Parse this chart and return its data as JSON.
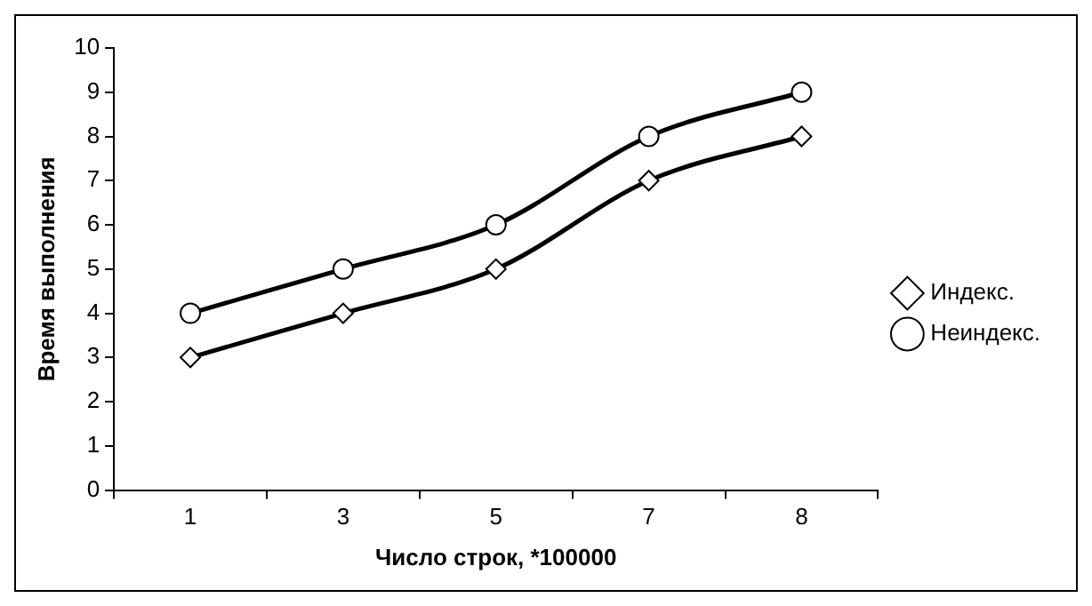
{
  "chart_data": {
    "type": "line",
    "xlabel": "Число строк, *100000",
    "ylabel": "Время выполнения",
    "categories": [
      "1",
      "3",
      "5",
      "7",
      "8"
    ],
    "series": [
      {
        "name": "Индекс.",
        "color": "#000000",
        "marker": "diamond",
        "values": [
          3,
          4,
          5,
          7,
          8
        ]
      },
      {
        "name": "Неиндекс.",
        "color": "#000000",
        "marker": "circle",
        "values": [
          4,
          5,
          6,
          8,
          9
        ]
      }
    ],
    "ylim": [
      0,
      10
    ],
    "yticks": [
      0,
      1,
      2,
      3,
      4,
      5,
      6,
      7,
      8,
      9,
      10
    ],
    "grid": false,
    "legend": "right"
  }
}
